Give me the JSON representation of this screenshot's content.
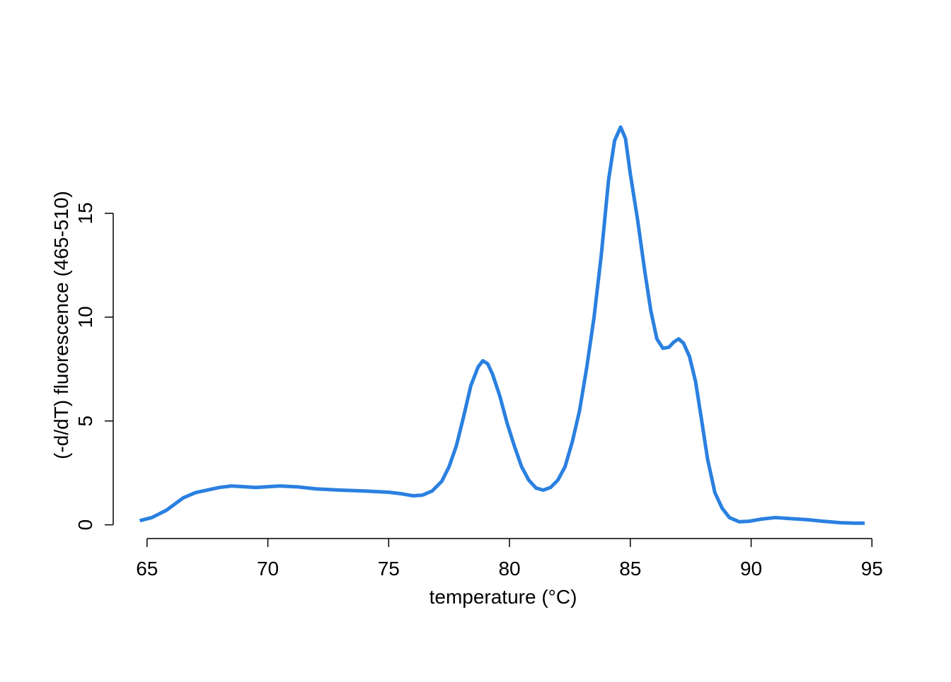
{
  "chart_data": {
    "type": "line",
    "xlabel": "temperature (°C)",
    "ylabel": "(-d/dT) fluorescence (465-510)",
    "x": [
      64.7,
      65.2,
      65.8,
      66.5,
      67,
      68,
      68.5,
      69.5,
      70.5,
      71.2,
      72,
      73,
      74,
      75,
      75.5,
      76,
      76.4,
      76.8,
      77.2,
      77.5,
      77.8,
      78.1,
      78.4,
      78.7,
      78.9,
      79.1,
      79.3,
      79.6,
      79.9,
      80.2,
      80.5,
      80.8,
      81.1,
      81.4,
      81.7,
      82,
      82.3,
      82.6,
      82.9,
      83.2,
      83.5,
      83.8,
      84.1,
      84.35,
      84.6,
      84.8,
      85,
      85.3,
      85.6,
      85.85,
      86.1,
      86.35,
      86.6,
      86.8,
      87,
      87.2,
      87.45,
      87.7,
      87.95,
      88.2,
      88.5,
      88.8,
      89.1,
      89.5,
      89.9,
      90.4,
      91,
      91.6,
      92.3,
      93,
      93.7,
      94.3,
      94.7
    ],
    "y": [
      0.2,
      0.35,
      0.7,
      1.3,
      1.55,
      1.8,
      1.87,
      1.8,
      1.87,
      1.83,
      1.73,
      1.67,
      1.63,
      1.57,
      1.5,
      1.4,
      1.43,
      1.63,
      2.1,
      2.8,
      3.8,
      5.2,
      6.7,
      7.6,
      7.9,
      7.75,
      7.25,
      6.2,
      4.9,
      3.8,
      2.8,
      2.15,
      1.77,
      1.67,
      1.8,
      2.15,
      2.8,
      4,
      5.5,
      7.6,
      10,
      13,
      16.6,
      18.5,
      19.15,
      18.6,
      16.9,
      14.7,
      12.2,
      10.3,
      8.95,
      8.5,
      8.55,
      8.8,
      8.95,
      8.75,
      8.1,
      6.9,
      5.05,
      3.15,
      1.55,
      0.8,
      0.35,
      0.15,
      0.17,
      0.27,
      0.35,
      0.3,
      0.25,
      0.17,
      0.1,
      0.08,
      0.08
    ],
    "color": "#2a80e0",
    "xlim": [
      63.6,
      95.9
    ],
    "ylim": [
      -0.66,
      19.96
    ],
    "xticks": [
      65,
      70,
      75,
      80,
      85,
      90,
      95
    ],
    "yticks": [
      0,
      5,
      10,
      15
    ]
  }
}
